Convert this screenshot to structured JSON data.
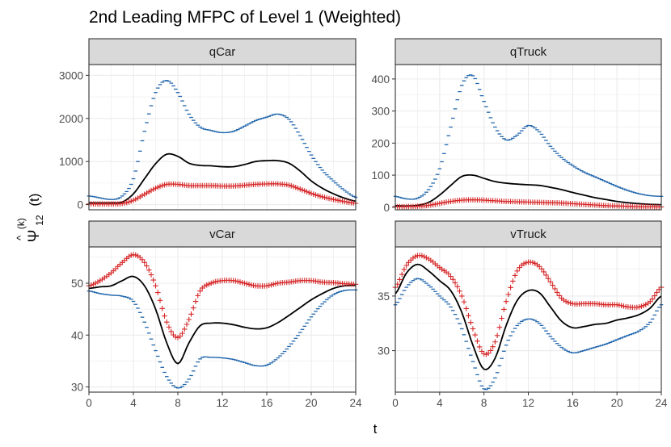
{
  "chart_data": {
    "type": "line",
    "title": "2nd Leading MFPC of Level 1 (Weighted)",
    "xlabel": "t",
    "ylabel": {
      "hat": "^",
      "base": "Ψ",
      "superscript": "(k)",
      "subscript": "12",
      "suffix": "(t)"
    },
    "xlim": [
      0,
      24
    ],
    "x_ticks": [
      0,
      4,
      8,
      12,
      16,
      20,
      24
    ],
    "legend": "none",
    "grid": true,
    "colors": {
      "upper": "#2166ac",
      "lower": "#d62728",
      "mean": "#000000",
      "strip": "#d9d9d9",
      "grid": "#ebebeb",
      "border": "#333333"
    },
    "series_meta": [
      {
        "name": "upper",
        "marker": "-"
      },
      {
        "name": "mean",
        "marker": "line"
      },
      {
        "name": "lower",
        "marker": "+"
      }
    ],
    "panels": [
      {
        "label": "qCar",
        "ylim": [
          -120,
          3250
        ],
        "y_ticks": [
          0,
          1000,
          2000,
          3000
        ],
        "knots": [
          0,
          2,
          3,
          4,
          5,
          6,
          7,
          8,
          9,
          10,
          11,
          12,
          13,
          14,
          15,
          16,
          17,
          18,
          19,
          20,
          21,
          22,
          23,
          24
        ],
        "series": [
          {
            "name": "upper",
            "values": [
              200,
              120,
              200,
              600,
              1700,
              2600,
              2880,
              2600,
              2100,
              1800,
              1720,
              1670,
              1700,
              1820,
              1950,
              2030,
              2100,
              1980,
              1600,
              1150,
              800,
              550,
              330,
              170
            ]
          },
          {
            "name": "mean",
            "values": [
              40,
              40,
              60,
              250,
              600,
              950,
              1170,
              1120,
              960,
              910,
              900,
              880,
              880,
              930,
              1000,
              1020,
              1020,
              960,
              780,
              550,
              380,
              250,
              150,
              80
            ]
          },
          {
            "name": "lower",
            "values": [
              15,
              15,
              25,
              100,
              240,
              380,
              470,
              470,
              440,
              440,
              440,
              430,
              430,
              450,
              470,
              480,
              480,
              450,
              360,
              260,
              180,
              120,
              70,
              30
            ]
          }
        ]
      },
      {
        "label": "qTruck",
        "ylim": [
          -8,
          445
        ],
        "y_ticks": [
          0,
          100,
          200,
          300,
          400
        ],
        "knots": [
          0,
          1,
          2,
          3,
          4,
          5,
          6,
          7,
          8,
          9,
          10,
          11,
          12,
          13,
          14,
          15,
          16,
          17,
          18,
          19,
          20,
          21,
          22,
          23,
          24
        ],
        "series": [
          {
            "name": "upper",
            "values": [
              34,
              26,
              28,
              55,
              120,
              250,
              380,
              410,
              330,
              250,
              210,
              225,
              255,
              235,
              190,
              155,
              130,
              110,
              95,
              80,
              65,
              52,
              42,
              36,
              34
            ]
          },
          {
            "name": "mean",
            "values": [
              5,
              4,
              6,
              15,
              38,
              68,
              96,
              100,
              90,
              80,
              75,
              72,
              70,
              68,
              62,
              55,
              46,
              38,
              30,
              24,
              18,
              14,
              11,
              9,
              8
            ]
          },
          {
            "name": "lower",
            "values": [
              2,
              2,
              3,
              6,
              12,
              18,
              22,
              23,
              22,
              20,
              18,
              17,
              16,
              15,
              14,
              13,
              11,
              9,
              7,
              5,
              4,
              3,
              2,
              2,
              1
            ]
          }
        ]
      },
      {
        "label": "vCar",
        "ylim": [
          29,
          57
        ],
        "y_ticks": [
          30,
          40,
          50
        ],
        "knots": [
          0,
          1,
          2,
          3,
          4,
          5,
          6,
          7,
          8,
          9,
          10,
          11,
          12,
          13,
          14,
          15,
          16,
          17,
          18,
          19,
          20,
          21,
          22,
          23,
          24
        ],
        "series": [
          {
            "name": "upper",
            "values": [
              48.5,
              48,
              47.7,
              47.5,
              46.5,
              42.5,
              37,
              32,
              29.8,
              31.5,
              35.4,
              35.7,
              35.6,
              35.3,
              34.7,
              34.1,
              34.2,
              35.6,
              37.8,
              40.5,
              43.5,
              46,
              47.8,
              48.6,
              48.7
            ]
          },
          {
            "name": "mean",
            "values": [
              49,
              49.3,
              49.5,
              50.5,
              51.3,
              49.5,
              45,
              38.5,
              34.5,
              38.5,
              41.8,
              42.3,
              42.3,
              42,
              41.5,
              41.2,
              41.4,
              42.4,
              43.8,
              45.3,
              46.8,
              48,
              49,
              49.5,
              49.6
            ]
          },
          {
            "name": "lower",
            "values": [
              49.5,
              50.5,
              52,
              54,
              55.5,
              54,
              49.5,
              42.5,
              39.5,
              43,
              48.5,
              50,
              50.5,
              50.5,
              50,
              49.5,
              49.5,
              50,
              50.2,
              50.5,
              50.5,
              50.2,
              50.1,
              49.9,
              49.8
            ]
          }
        ]
      },
      {
        "label": "vTruck",
        "ylim": [
          26.2,
          39.5
        ],
        "y_ticks": [
          30,
          35
        ],
        "knots": [
          0,
          1,
          2,
          3,
          4,
          5,
          6,
          7,
          8,
          9,
          10,
          11,
          12,
          13,
          14,
          15,
          16,
          17,
          18,
          19,
          20,
          21,
          22,
          23,
          24
        ],
        "series": [
          {
            "name": "upper",
            "values": [
              34.2,
              35.8,
              36.6,
              36,
              35,
              34,
              32,
              29,
              26.5,
              27.5,
              30.5,
              32.3,
              32.9,
              32.5,
              31.3,
              30.3,
              29.8,
              30,
              30.3,
              30.6,
              31,
              31.4,
              31.8,
              32.6,
              34.2
            ]
          },
          {
            "name": "mean",
            "values": [
              35.2,
              37.1,
              37.9,
              37.3,
              36.4,
              35.5,
              33.5,
              30.5,
              28.3,
              29.3,
              32.3,
              34.6,
              35.5,
              35.3,
              34,
              32.7,
              32.1,
              32.2,
              32.4,
              32.5,
              32.8,
              33,
              33.3,
              33.9,
              35
            ]
          },
          {
            "name": "lower",
            "values": [
              35.8,
              37.8,
              38.7,
              38.4,
              37.6,
              36.8,
              35,
              32,
              29.7,
              30.8,
              34.5,
              37.3,
              38.1,
              37.7,
              36.3,
              34.8,
              34.3,
              34.3,
              34.3,
              34.2,
              34.2,
              34,
              34,
              34.5,
              35.8
            ]
          }
        ]
      }
    ]
  }
}
